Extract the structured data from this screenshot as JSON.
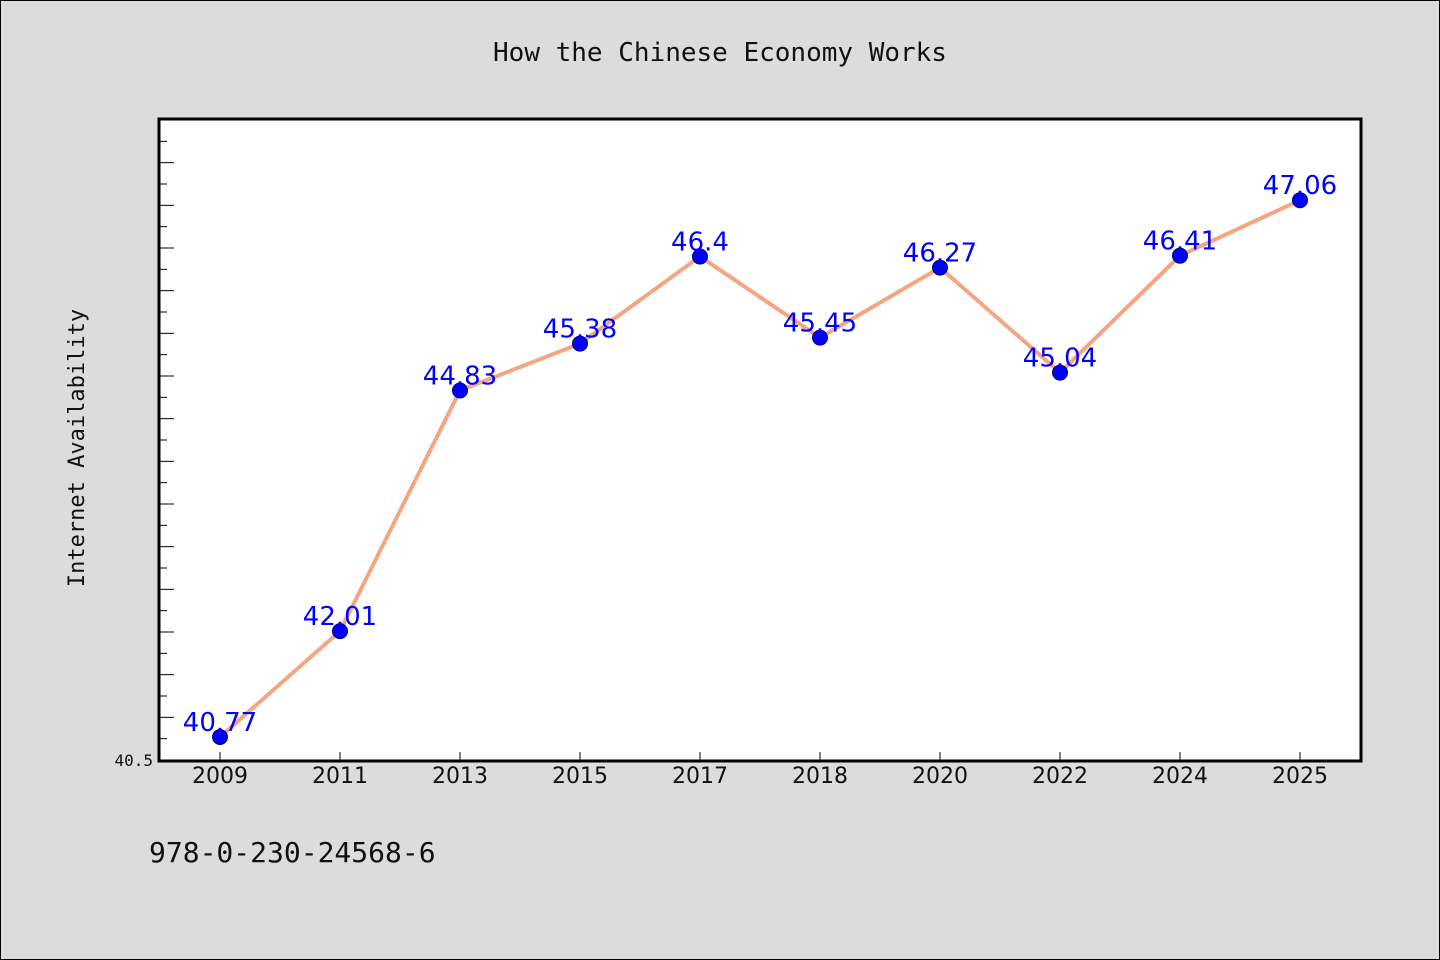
{
  "chart_data": {
    "type": "line",
    "title": "How the Chinese Economy Works",
    "xlabel": "",
    "ylabel": "Internet Availability",
    "categories": [
      "2009",
      "2011",
      "2013",
      "2015",
      "2017",
      "2018",
      "2020",
      "2022",
      "2024",
      "2025"
    ],
    "series": [
      {
        "values": [
          40.77,
          42.01,
          44.83,
          45.38,
          46.4,
          45.45,
          46.27,
          45.04,
          46.41,
          47.06
        ]
      }
    ],
    "data_labels": [
      "40.77",
      "42.01",
      "44.83",
      "45.38",
      "46.4",
      "45.45",
      "46.27",
      "45.04",
      "46.41",
      "47.06"
    ],
    "ylim": [
      40.5,
      48.0
    ],
    "ytick_labels": [
      "40.5"
    ],
    "grid": false,
    "colors": {
      "line": "#f4a582",
      "marker": "#0000ff",
      "data_label": "#0000ff",
      "plot_background": "#ffffff",
      "figure_background": "#dcdcdc"
    }
  },
  "footer_text": "978-0-230-24568-6"
}
